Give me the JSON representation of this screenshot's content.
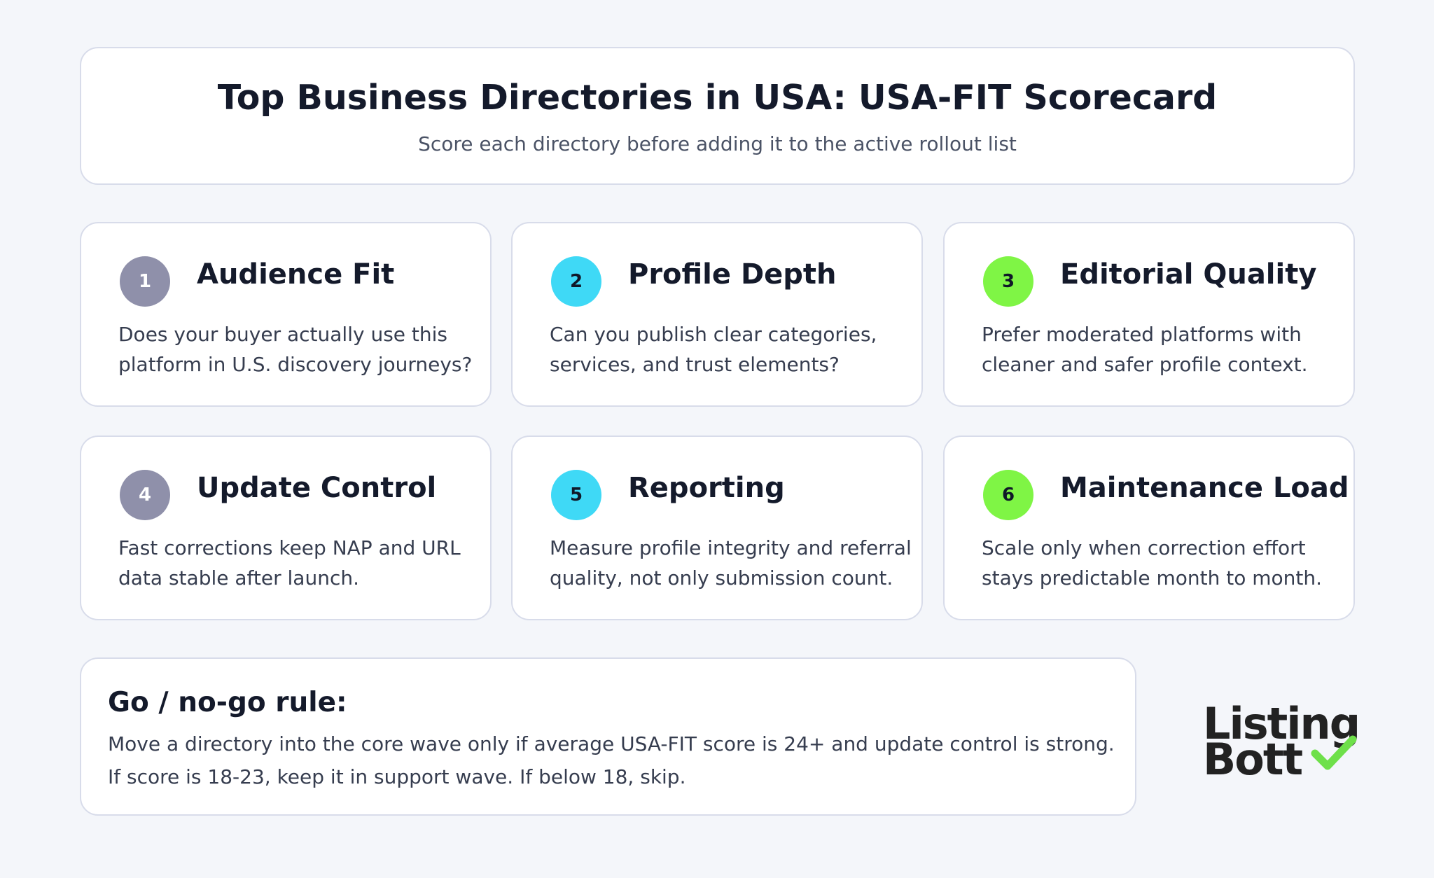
{
  "header": {
    "title": "Top Business Directories in USA: USA-FIT Scorecard",
    "subtitle": "Score each directory before adding it to the active rollout list"
  },
  "cards": [
    {
      "number": "1",
      "title": "Audience Fit",
      "lines": [
        "Does your buyer actually use this",
        "platform in U.S. discovery journeys?"
      ],
      "color": "#8f90aa",
      "number_color": "#ffffff"
    },
    {
      "number": "2",
      "title": "Profile Depth",
      "lines": [
        "Can you publish clear categories,",
        "services, and trust elements?"
      ],
      "color": "#3fd9f6",
      "number_color": "#101828"
    },
    {
      "number": "3",
      "title": "Editorial Quality",
      "lines": [
        "Prefer moderated platforms with",
        "cleaner and safer profile context."
      ],
      "color": "#7ff545",
      "number_color": "#101828"
    },
    {
      "number": "4",
      "title": "Update Control",
      "lines": [
        "Fast corrections keep NAP and URL",
        "data stable after launch."
      ],
      "color": "#8f90aa",
      "number_color": "#ffffff"
    },
    {
      "number": "5",
      "title": "Reporting",
      "lines": [
        "Measure profile integrity and referral",
        "quality, not only submission count."
      ],
      "color": "#3fd9f6",
      "number_color": "#101828"
    },
    {
      "number": "6",
      "title": "Maintenance Load",
      "lines": [
        "Scale only when correction effort",
        "stays predictable month to month."
      ],
      "color": "#7ff545",
      "number_color": "#101828"
    }
  ],
  "rule": {
    "title": "Go / no-go rule:",
    "lines": [
      "Move a directory into the core wave only if average USA-FIT score is 24+ and update control is strong.",
      "If score is 18-23, keep it in support wave. If below 18, skip."
    ]
  },
  "logo": {
    "lines": [
      "Listing",
      "Bott"
    ]
  }
}
